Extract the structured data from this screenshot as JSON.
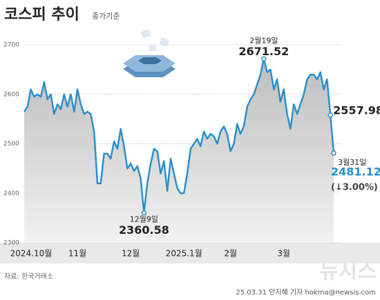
{
  "chart_data": {
    "type": "line",
    "title": "코스피 추이",
    "subtitle": "종가기준",
    "source": "자료: 한국거래소",
    "credit": "25.03.31 안지혜 기자 hokma@newsis.com",
    "logo": "뉴시스",
    "categories": [
      "2024.10월",
      null,
      null,
      null,
      null,
      null,
      null,
      null,
      null,
      null,
      null,
      null,
      null,
      null,
      null,
      null,
      "11월",
      null,
      null,
      null,
      null,
      null,
      null,
      null,
      null,
      null,
      null,
      null,
      null,
      null,
      null,
      null,
      "12월",
      null,
      null,
      null,
      null,
      null,
      null,
      null,
      null,
      null,
      null,
      null,
      null,
      null,
      null,
      null,
      "2025.1월",
      null,
      null,
      null,
      null,
      null,
      null,
      null,
      null,
      null,
      null,
      null,
      null,
      null,
      "2월",
      null,
      null,
      null,
      null,
      null,
      null,
      null,
      null,
      null,
      null,
      null,
      null,
      null,
      null,
      null,
      "3월",
      null,
      null,
      null,
      null,
      null,
      null,
      null,
      null,
      null,
      null,
      null,
      null,
      null,
      null,
      null
    ],
    "series": [
      {
        "name": "코스피",
        "color": "#2b8fcb",
        "values": [
          2565,
          2575,
          2610,
          2595,
          2600,
          2595,
          2625,
          2590,
          2600,
          2560,
          2580,
          2570,
          2600,
          2575,
          2600,
          2565,
          2610,
          2580,
          2560,
          2565,
          2560,
          2525,
          2420,
          2420,
          2480,
          2480,
          2470,
          2505,
          2490,
          2530,
          2495,
          2450,
          2460,
          2445,
          2455,
          2430,
          2360.58,
          2420,
          2460,
          2490,
          2485,
          2440,
          2465,
          2405,
          2470,
          2440,
          2410,
          2400,
          2400,
          2440,
          2490,
          2500,
          2510,
          2495,
          2525,
          2510,
          2520,
          2515,
          2500,
          2525,
          2535,
          2520,
          2485,
          2500,
          2540,
          2520,
          2535,
          2575,
          2590,
          2600,
          2620,
          2640,
          2671.52,
          2645,
          2650,
          2610,
          2630,
          2585,
          2610,
          2560,
          2530,
          2580,
          2560,
          2580,
          2600,
          2630,
          2640,
          2640,
          2630,
          2645,
          2610,
          2630,
          2557.98,
          2481.12
        ],
        "value_labels": [
          null,
          null,
          null,
          null,
          null,
          null,
          null,
          null,
          null,
          null,
          null,
          null,
          null,
          null,
          null,
          null,
          null,
          null,
          null,
          null,
          null,
          null,
          null,
          null,
          null,
          null,
          null,
          null,
          null,
          null,
          null,
          null,
          null,
          null,
          null,
          null,
          "2360.58",
          null,
          null,
          null,
          null,
          null,
          null,
          null,
          null,
          null,
          null,
          null,
          null,
          null,
          null,
          null,
          null,
          null,
          null,
          null,
          null,
          null,
          null,
          null,
          null,
          null,
          null,
          null,
          null,
          null,
          null,
          null,
          null,
          null,
          null,
          null,
          "2671.52",
          null,
          null,
          null,
          null,
          null,
          null,
          null,
          null,
          null,
          null,
          null,
          null,
          null,
          null,
          null,
          null,
          null,
          null,
          null,
          "2557.98",
          "2481.12"
        ],
        "date_labels": [
          null,
          null,
          null,
          null,
          null,
          null,
          null,
          null,
          null,
          null,
          null,
          null,
          null,
          null,
          null,
          null,
          null,
          null,
          null,
          null,
          null,
          null,
          null,
          null,
          null,
          null,
          null,
          null,
          null,
          null,
          null,
          null,
          null,
          null,
          null,
          null,
          "12월9일",
          null,
          null,
          null,
          null,
          null,
          null,
          null,
          null,
          null,
          null,
          null,
          null,
          null,
          null,
          null,
          null,
          null,
          null,
          null,
          null,
          null,
          null,
          null,
          null,
          null,
          null,
          null,
          null,
          null,
          null,
          null,
          null,
          null,
          null,
          null,
          "2월19일",
          null,
          null,
          null,
          null,
          null,
          null,
          null,
          null,
          null,
          null,
          null,
          null,
          null,
          null,
          null,
          null,
          null,
          null,
          null,
          null,
          "3월31일"
        ],
        "change_label": "(↓3.00%)"
      }
    ],
    "ylim": [
      2300,
      2700
    ],
    "yticks": [
      2300,
      2400,
      2500,
      2600,
      2700
    ],
    "grid": true
  }
}
